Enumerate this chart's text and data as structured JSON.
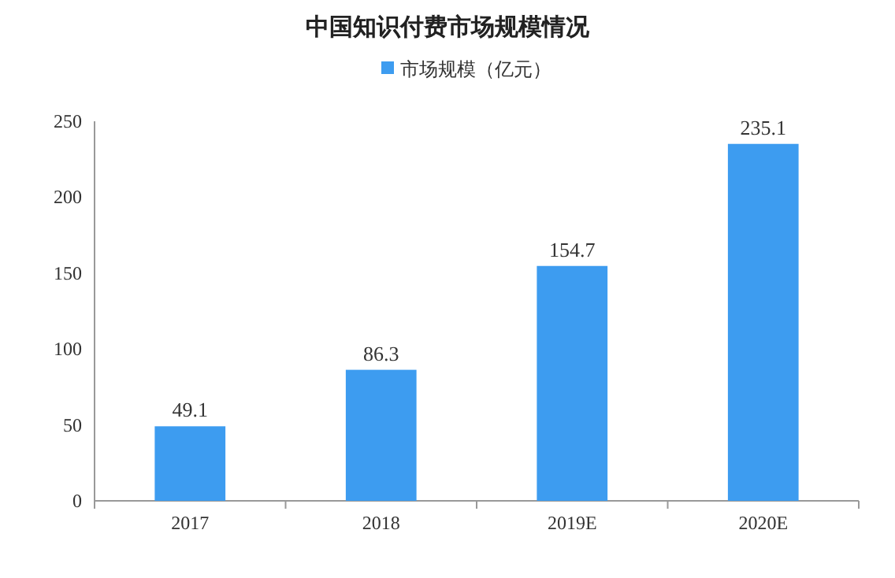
{
  "chart_data": {
    "type": "bar",
    "title": "中国知识付费市场规模情况",
    "categories": [
      "2017",
      "2018",
      "2019E",
      "2020E"
    ],
    "series": [
      {
        "name": "市场规模（亿元）",
        "color": "#3d9cf0",
        "values": [
          49.1,
          86.3,
          154.7,
          235.1
        ]
      }
    ],
    "ylim": [
      0,
      250
    ],
    "yticks": [
      0,
      50,
      100,
      150,
      200,
      250
    ],
    "data_labels": true,
    "legend": "top",
    "grid": false
  }
}
